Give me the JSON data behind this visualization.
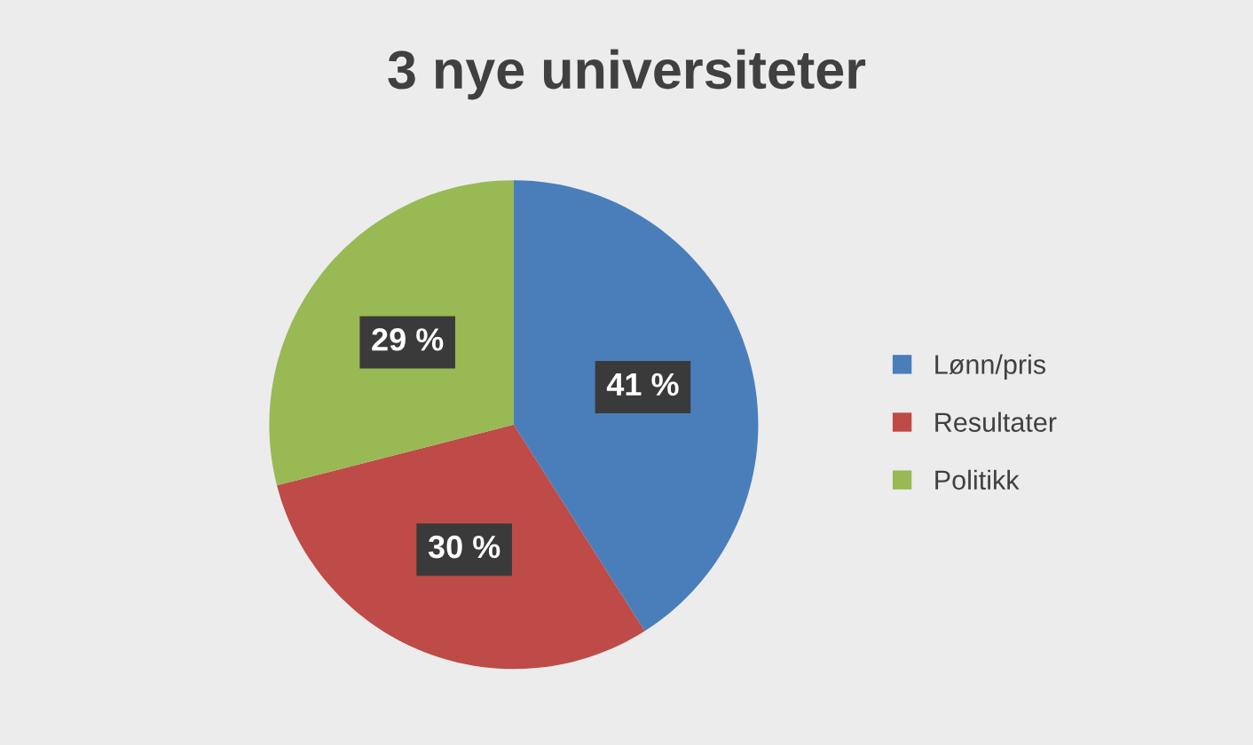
{
  "chart_data": {
    "type": "pie",
    "title": "3 nye universiteter",
    "categories": [
      "Lønn/pris",
      "Resultater",
      "Politikk"
    ],
    "values": [
      41,
      30,
      29
    ],
    "colors": [
      "#4a7ebb",
      "#be4b48",
      "#98b954"
    ],
    "value_labels": [
      "41 %",
      "30 %",
      "29 %"
    ],
    "legend": "right"
  }
}
